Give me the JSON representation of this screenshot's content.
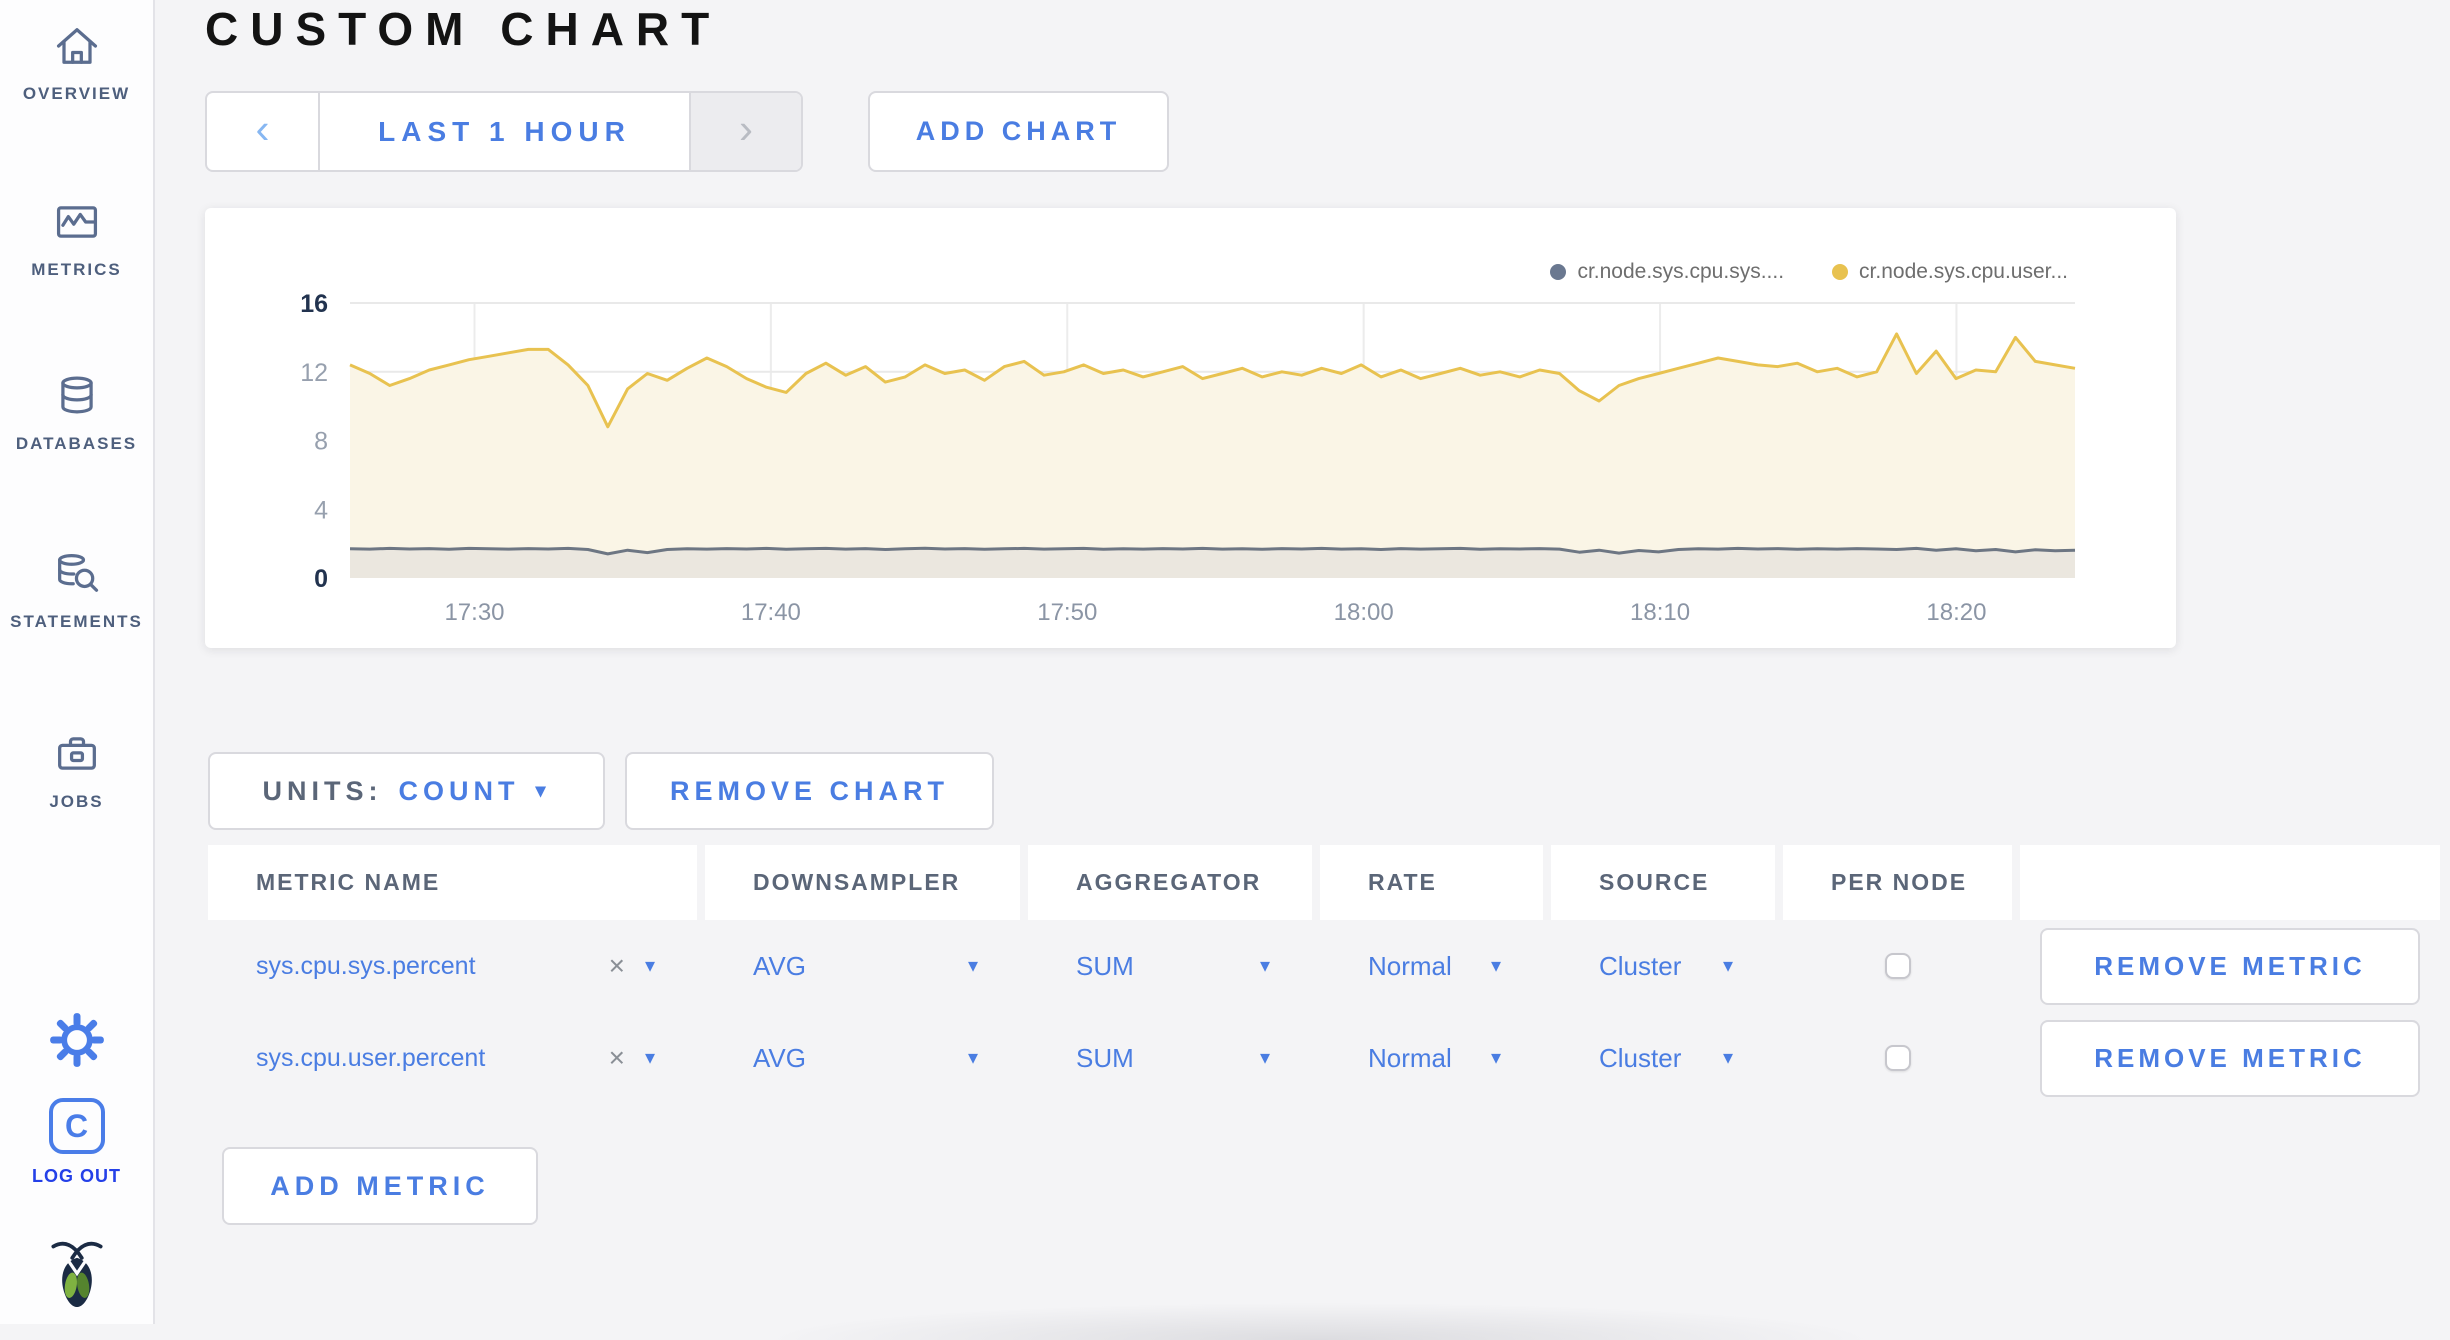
{
  "sidebar": {
    "items": [
      {
        "label": "OVERVIEW",
        "icon": "home-icon"
      },
      {
        "label": "METRICS",
        "icon": "metrics-icon"
      },
      {
        "label": "DATABASES",
        "icon": "database-icon"
      },
      {
        "label": "STATEMENTS",
        "icon": "statements-icon"
      },
      {
        "label": "JOBS",
        "icon": "jobs-icon"
      }
    ],
    "logout_label": "LOG OUT",
    "logo_letter": "C"
  },
  "header": {
    "title": "CUSTOM CHART"
  },
  "time_selector": {
    "label": "LAST 1 HOUR",
    "prev": "‹",
    "next": "›"
  },
  "buttons": {
    "add_chart": "ADD CHART",
    "remove_chart": "REMOVE CHART",
    "add_metric": "ADD METRIC"
  },
  "units": {
    "label": "UNITS:",
    "value": "COUNT",
    "caret": "▾"
  },
  "chart_data": {
    "type": "line",
    "title": "",
    "x_ticks": [
      "17:30",
      "17:40",
      "17:50",
      "18:00",
      "18:10",
      "18:20"
    ],
    "x_tick_minutes": [
      30,
      40,
      50,
      60,
      70,
      80
    ],
    "x_domain_minutes": [
      25.8,
      84.0
    ],
    "y_ticks": [
      0,
      4,
      8,
      12,
      16
    ],
    "ylim": [
      0,
      16
    ],
    "grid": true,
    "legend_position": "top-right",
    "legend": [
      {
        "label": "cr.node.sys.cpu.sys....",
        "color": "#6a7890"
      },
      {
        "label": "cr.node.sys.cpu.user...",
        "color": "#e8c250"
      }
    ],
    "series": [
      {
        "name": "cr.node.sys.cpu.sys....",
        "color": "#6d7683",
        "fill": "#ebe7df",
        "values": [
          1.7,
          1.68,
          1.72,
          1.69,
          1.71,
          1.67,
          1.72,
          1.7,
          1.68,
          1.71,
          1.69,
          1.72,
          1.66,
          1.4,
          1.62,
          1.48,
          1.66,
          1.7,
          1.68,
          1.71,
          1.69,
          1.72,
          1.67,
          1.7,
          1.72,
          1.68,
          1.71,
          1.66,
          1.7,
          1.73,
          1.69,
          1.71,
          1.67,
          1.7,
          1.72,
          1.68,
          1.7,
          1.72,
          1.67,
          1.7,
          1.68,
          1.71,
          1.69,
          1.72,
          1.68,
          1.7,
          1.67,
          1.71,
          1.69,
          1.72,
          1.68,
          1.7,
          1.66,
          1.71,
          1.68,
          1.7,
          1.72,
          1.67,
          1.7,
          1.69,
          1.71,
          1.68,
          1.5,
          1.62,
          1.45,
          1.6,
          1.52,
          1.66,
          1.7,
          1.68,
          1.72,
          1.69,
          1.71,
          1.67,
          1.7,
          1.68,
          1.71,
          1.69,
          1.66,
          1.72,
          1.62,
          1.7,
          1.58,
          1.66,
          1.52,
          1.64,
          1.58,
          1.62
        ]
      },
      {
        "name": "cr.node.sys.cpu.user...",
        "color": "#e8c250",
        "fill": "#faf5e6",
        "values": [
          12.4,
          11.9,
          11.2,
          11.6,
          12.1,
          12.4,
          12.7,
          12.9,
          13.1,
          13.3,
          13.3,
          12.4,
          11.2,
          8.8,
          11.0,
          11.9,
          11.5,
          12.2,
          12.8,
          12.3,
          11.6,
          11.1,
          10.8,
          11.9,
          12.5,
          11.8,
          12.3,
          11.4,
          11.7,
          12.4,
          11.9,
          12.1,
          11.5,
          12.3,
          12.6,
          11.8,
          12.0,
          12.4,
          11.9,
          12.1,
          11.7,
          12.0,
          12.3,
          11.6,
          11.9,
          12.2,
          11.7,
          12.0,
          11.8,
          12.2,
          11.9,
          12.4,
          11.7,
          12.1,
          11.6,
          11.9,
          12.2,
          11.8,
          12.0,
          11.7,
          12.1,
          11.9,
          10.9,
          10.3,
          11.2,
          11.6,
          11.9,
          12.2,
          12.5,
          12.8,
          12.6,
          12.4,
          12.3,
          12.5,
          12.0,
          12.2,
          11.7,
          12.0,
          14.2,
          11.9,
          13.2,
          11.6,
          12.1,
          12.0,
          14.0,
          12.6,
          12.4,
          12.2
        ]
      }
    ]
  },
  "table": {
    "headers": [
      "METRIC NAME",
      "DOWNSAMPLER",
      "AGGREGATOR",
      "RATE",
      "SOURCE",
      "PER NODE",
      ""
    ],
    "symbols": {
      "caret": "▾",
      "remove_x": "×"
    },
    "rows": [
      {
        "metric": "sys.cpu.sys.percent",
        "downsampler": "AVG",
        "aggregator": "SUM",
        "rate": "Normal",
        "source": "Cluster",
        "per_node": false,
        "remove_label": "REMOVE METRIC"
      },
      {
        "metric": "sys.cpu.user.percent",
        "downsampler": "AVG",
        "aggregator": "SUM",
        "rate": "Normal",
        "source": "Cluster",
        "per_node": false,
        "remove_label": "REMOVE METRIC"
      }
    ]
  },
  "colors": {
    "accent_blue": "#4a7de2",
    "logout_blue": "#2440e8",
    "sidebar_icon": "#5b6d8f",
    "series_yellow": "#e8c250",
    "series_yellow_fill": "#faf5e6",
    "series_gray": "#6d7683",
    "series_gray_fill": "#ebe7df",
    "page_bg": "#f4f4f6"
  }
}
